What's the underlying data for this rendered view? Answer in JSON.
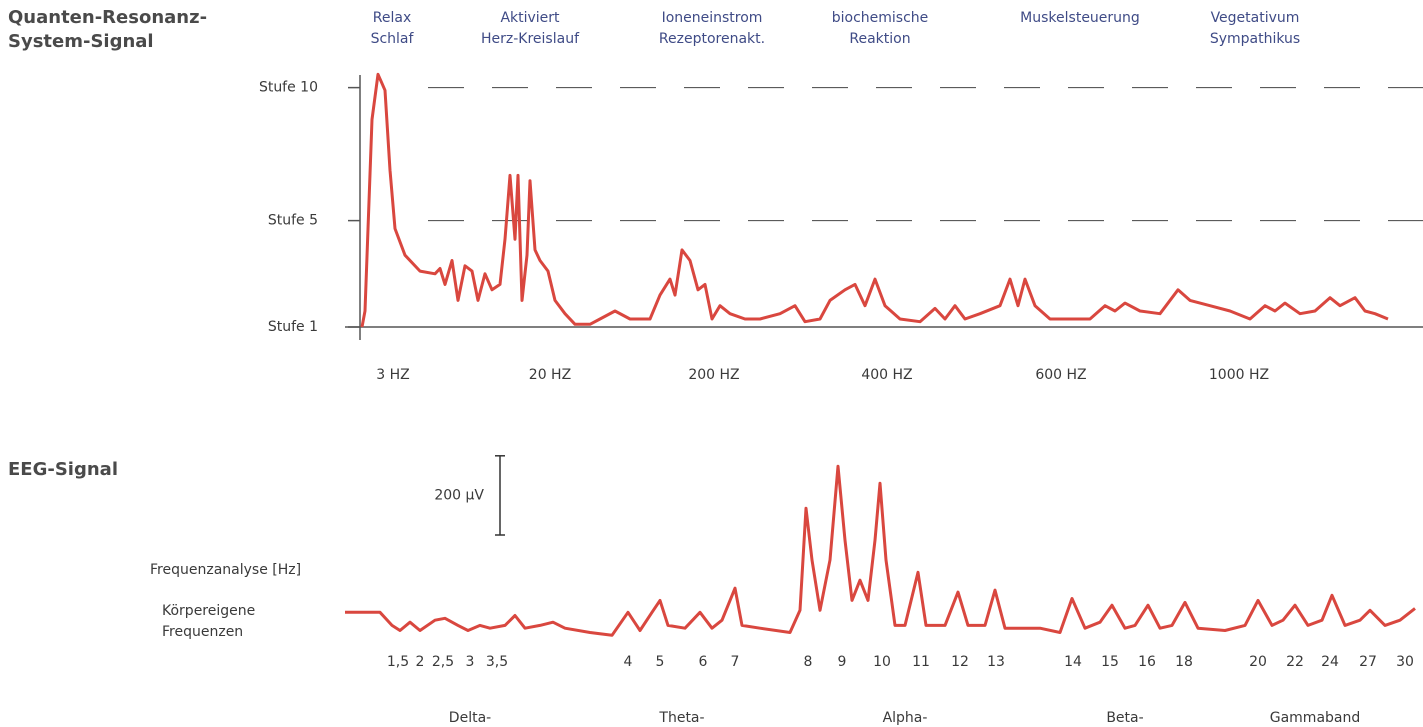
{
  "chart_data": [
    {
      "type": "line",
      "title": [
        "Quanten-Resonanz-",
        "System-Signal"
      ],
      "bands": [
        [
          "Relax",
          "Schlaf"
        ],
        [
          "Aktiviert",
          "Herz-Kreislauf"
        ],
        [
          "Ioneneinstrom",
          "Rezeptorenakt."
        ],
        [
          "biochemische",
          "Reaktion"
        ],
        [
          "Muskelsteuerung"
        ],
        [
          "Vegetativum",
          "Sympathikus"
        ]
      ],
      "color": "#d9473f",
      "grid": true,
      "xlim": [
        0,
        104
      ],
      "ylim": [
        1,
        10.7
      ],
      "yticks": [
        {
          "value": 10,
          "label": "Stufe 10"
        },
        {
          "value": 5,
          "label": "Stufe  5"
        },
        {
          "value": 1,
          "label": "Stufe  1"
        }
      ],
      "xticks": [
        {
          "value": 3.3,
          "label": "3 HZ"
        },
        {
          "value": 19,
          "label": "20 HZ"
        },
        {
          "value": 35.4,
          "label": "200 HZ"
        },
        {
          "value": 52.7,
          "label": "400 HZ"
        },
        {
          "value": 70.1,
          "label": "600 HZ"
        },
        {
          "value": 87.9,
          "label": "1000 HZ"
        }
      ],
      "x": [
        0.2,
        0.5,
        1.2,
        1.8,
        2.5,
        3.0,
        3.5,
        4.5,
        6.0,
        7.5,
        8.0,
        8.5,
        9.2,
        9.8,
        10.5,
        11.2,
        11.8,
        12.5,
        13.2,
        14.0,
        14.5,
        15.0,
        15.5,
        15.8,
        16.2,
        16.7,
        17.0,
        17.5,
        18.0,
        18.8,
        19.5,
        20.5,
        21.5,
        23.0,
        24.0,
        25.5,
        27.0,
        29.0,
        30.0,
        31.0,
        31.5,
        32.2,
        33.0,
        33.8,
        34.5,
        35.2,
        36.0,
        37.0,
        38.5,
        40.0,
        42.0,
        43.5,
        44.5,
        46.0,
        47.0,
        48.5,
        49.5,
        50.5,
        51.5,
        52.5,
        54.0,
        56.0,
        57.5,
        58.5,
        59.5,
        60.5,
        62.0,
        64.0,
        65.0,
        65.8,
        66.5,
        67.5,
        69.0,
        71.0,
        73.0,
        74.5,
        75.5,
        76.5,
        78.0,
        80.0,
        81.8,
        83.0,
        85.0,
        87.0,
        89.0,
        90.5,
        91.5,
        92.5,
        94.0,
        95.5,
        97.0,
        98.0,
        99.5,
        100.5,
        101.5,
        102.8
      ],
      "values": [
        1.0,
        1.6,
        8.8,
        10.5,
        9.9,
        6.9,
        4.7,
        3.7,
        3.1,
        3.0,
        3.2,
        2.6,
        3.5,
        2.0,
        3.3,
        3.1,
        2.0,
        3.0,
        2.4,
        2.6,
        4.3,
        6.7,
        4.3,
        6.7,
        2.0,
        3.7,
        6.5,
        3.9,
        3.5,
        3.1,
        2.0,
        1.5,
        1.1,
        1.1,
        1.3,
        1.6,
        1.3,
        1.3,
        2.2,
        2.8,
        2.2,
        3.9,
        3.5,
        2.4,
        2.6,
        1.3,
        1.8,
        1.5,
        1.3,
        1.3,
        1.5,
        1.8,
        1.2,
        1.3,
        2.0,
        2.4,
        2.6,
        1.8,
        2.8,
        1.8,
        1.3,
        1.2,
        1.7,
        1.3,
        1.8,
        1.3,
        1.5,
        1.8,
        2.8,
        1.8,
        2.8,
        1.8,
        1.3,
        1.3,
        1.3,
        1.8,
        1.6,
        1.9,
        1.6,
        1.5,
        2.4,
        2.0,
        1.8,
        1.6,
        1.3,
        1.8,
        1.6,
        1.9,
        1.5,
        1.6,
        2.1,
        1.8,
        2.1,
        1.6,
        1.5,
        1.3
      ]
    },
    {
      "type": "line",
      "title": "EEG-Signal",
      "y_label": "Frequenzanalyse [Hz]",
      "annotation": [
        "Körpereigene",
        "Frequenzen"
      ],
      "scale_bar": {
        "value": 200,
        "label": "200 µV"
      },
      "bands": [
        "Delta-",
        "Theta-",
        "Alpha-",
        "Beta-",
        "Gammaband"
      ],
      "color": "#d9473f",
      "xlim": [
        0,
        108
      ],
      "ylim": [
        -80,
        420
      ],
      "xticks": [
        {
          "value": 5.8,
          "label": "1,5"
        },
        {
          "value": 8.0,
          "label": "2"
        },
        {
          "value": 10.3,
          "label": "2,5"
        },
        {
          "value": 13.0,
          "label": "3"
        },
        {
          "value": 15.7,
          "label": "3,5"
        },
        {
          "value": 28.8,
          "label": "4"
        },
        {
          "value": 32.0,
          "label": "5"
        },
        {
          "value": 36.3,
          "label": "6"
        },
        {
          "value": 39.5,
          "label": "7"
        },
        {
          "value": 46.8,
          "label": "8"
        },
        {
          "value": 50.2,
          "label": "9"
        },
        {
          "value": 54.2,
          "label": "10"
        },
        {
          "value": 58.1,
          "label": "11"
        },
        {
          "value": 62.0,
          "label": "12"
        },
        {
          "value": 65.6,
          "label": "13"
        },
        {
          "value": 73.3,
          "label": "14"
        },
        {
          "value": 77.0,
          "label": "15"
        },
        {
          "value": 80.7,
          "label": "16"
        },
        {
          "value": 84.4,
          "label": "18"
        },
        {
          "value": 91.8,
          "label": "20"
        },
        {
          "value": 95.5,
          "label": "22"
        },
        {
          "value": 99.0,
          "label": "24"
        },
        {
          "value": 102.8,
          "label": "27"
        },
        {
          "value": 106.5,
          "label": "30"
        }
      ],
      "x": [
        0.5,
        4.0,
        5.2,
        6.0,
        7.0,
        8.0,
        9.5,
        10.5,
        11.8,
        12.8,
        14.0,
        15.0,
        16.5,
        17.5,
        18.5,
        20.0,
        21.3,
        22.5,
        25.0,
        27.2,
        28.8,
        30.0,
        31.2,
        32.0,
        32.8,
        34.5,
        36.0,
        37.2,
        38.2,
        39.5,
        40.2,
        42.0,
        45.0,
        46.0,
        46.6,
        47.2,
        48.0,
        49.0,
        49.8,
        50.5,
        51.2,
        52.0,
        52.8,
        53.5,
        54.0,
        54.6,
        55.5,
        56.5,
        57.8,
        58.6,
        60.5,
        61.8,
        62.8,
        64.5,
        65.5,
        66.5,
        70.0,
        72.0,
        73.2,
        74.5,
        76.0,
        77.2,
        78.5,
        79.5,
        80.8,
        82.0,
        83.2,
        84.5,
        85.8,
        88.5,
        90.5,
        91.8,
        93.2,
        94.3,
        95.5,
        96.8,
        98.2,
        99.2,
        100.5,
        102.0,
        103.0,
        104.5,
        106.0,
        107.5
      ],
      "values": [
        0,
        0,
        -33,
        -46,
        -25,
        -46,
        -20,
        -15,
        -33,
        -46,
        -33,
        -40,
        -33,
        -8,
        -40,
        -33,
        -25,
        -40,
        -51,
        -58,
        0,
        -46,
        0,
        30,
        -33,
        -40,
        0,
        -40,
        -20,
        61,
        -33,
        -40,
        -51,
        5,
        263,
        132,
        5,
        132,
        369,
        182,
        30,
        81,
        30,
        182,
        326,
        132,
        -33,
        -33,
        101,
        -33,
        -33,
        51,
        -33,
        -33,
        56,
        -40,
        -40,
        -51,
        35,
        -40,
        -25,
        18,
        -40,
        -33,
        18,
        -40,
        -33,
        25,
        -40,
        -46,
        -33,
        30,
        -33,
        -20,
        18,
        -33,
        -20,
        43,
        -33,
        -20,
        5,
        -33,
        -20,
        10
      ]
    }
  ]
}
